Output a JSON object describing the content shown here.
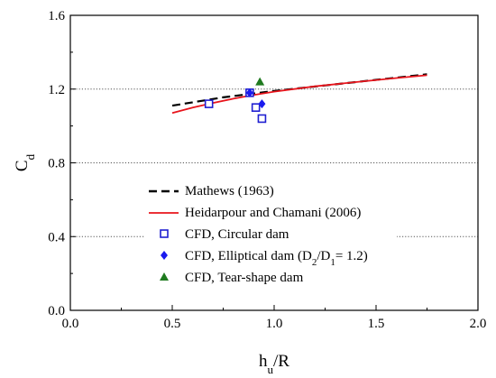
{
  "chart_data": {
    "type": "scatter",
    "xlabel": {
      "main": "h",
      "sub": "u",
      "tail": "/R"
    },
    "ylabel": {
      "main": "C",
      "sub": "d"
    },
    "xlim": [
      0.0,
      2.0
    ],
    "ylim": [
      0.0,
      1.6
    ],
    "x_ticks": [
      0.0,
      0.5,
      1.0,
      1.5,
      2.0
    ],
    "x_tick_labels": [
      "0.0",
      "0.5",
      "1.0",
      "1.5",
      "2.0"
    ],
    "y_ticks": [
      0.0,
      0.4,
      0.8,
      1.2,
      1.6
    ],
    "y_tick_labels": [
      "0.0",
      "0.4",
      "0.8",
      "1.2",
      "1.6"
    ],
    "grid": {
      "y_dotted": [
        0.4,
        0.8,
        1.2
      ]
    },
    "legend_position": "bottom-center",
    "series": [
      {
        "name": "Mathews (1963)",
        "kind": "line",
        "style": "dashed",
        "color": "#000000",
        "x": [
          0.5,
          0.75,
          1.0,
          1.25,
          1.5,
          1.75
        ],
        "y": [
          1.11,
          1.155,
          1.19,
          1.22,
          1.25,
          1.28
        ]
      },
      {
        "name": "Heidarpour and Chamani (2006)",
        "kind": "line",
        "style": "solid",
        "color": "#e8141c",
        "x": [
          0.5,
          0.6,
          0.7,
          0.8,
          0.9,
          1.0,
          1.2,
          1.4,
          1.6,
          1.75
        ],
        "y": [
          1.07,
          1.1,
          1.125,
          1.148,
          1.168,
          1.186,
          1.215,
          1.238,
          1.26,
          1.275
        ]
      },
      {
        "name": "CFD, Circular dam",
        "kind": "marker",
        "marker": "open-square",
        "color": "#1f1fd1",
        "x": [
          0.68,
          0.88,
          0.91,
          0.94
        ],
        "y": [
          1.12,
          1.18,
          1.1,
          1.04
        ]
      },
      {
        "name": "CFD, Elliptical dam",
        "legend_suffix": {
          "prefix": " (D",
          "sub1": "2",
          "mid": "/D",
          "sub2": "1",
          "tail": "= 1.2)"
        },
        "kind": "marker",
        "marker": "filled-diamond",
        "color": "#1a1aee",
        "x": [
          0.88,
          0.94
        ],
        "y": [
          1.18,
          1.12
        ]
      },
      {
        "name": "CFD, Tear-shape dam",
        "kind": "marker",
        "marker": "filled-triangle",
        "color": "#1f7a1f",
        "x": [
          0.93
        ],
        "y": [
          1.24
        ]
      }
    ]
  }
}
